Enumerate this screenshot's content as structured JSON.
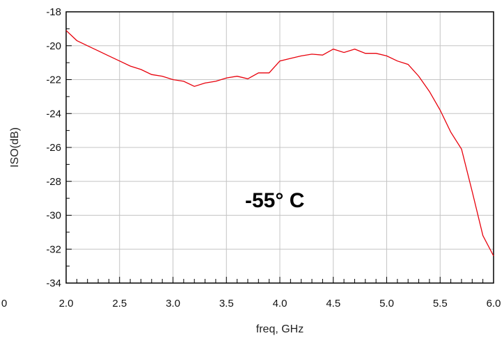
{
  "chart_data": {
    "type": "line",
    "title": "",
    "xlabel": "freq, GHz",
    "ylabel": "ISO(dB)",
    "xlim": [
      2.0,
      6.0
    ],
    "ylim": [
      -34,
      -18
    ],
    "x_ticks": [
      "2.0",
      "2.5",
      "3.0",
      "3.5",
      "4.0",
      "4.5",
      "5.0",
      "5.5",
      "6.0"
    ],
    "y_ticks": [
      "-18",
      "-20",
      "-22",
      "-24",
      "-26",
      "-28",
      "-30",
      "-32",
      "-34"
    ],
    "left_edge_tick_label": "0",
    "grid": true,
    "annotation": "-55° C",
    "series": [
      {
        "color": "#e8000b",
        "x": [
          2.0,
          2.1,
          2.2,
          2.3,
          2.4,
          2.5,
          2.6,
          2.7,
          2.8,
          2.9,
          3.0,
          3.1,
          3.2,
          3.3,
          3.4,
          3.5,
          3.6,
          3.7,
          3.8,
          3.9,
          4.0,
          4.1,
          4.2,
          4.3,
          4.4,
          4.5,
          4.6,
          4.7,
          4.8,
          4.9,
          5.0,
          5.1,
          5.2,
          5.3,
          5.4,
          5.5,
          5.6,
          5.7,
          5.8,
          5.9,
          6.0
        ],
        "y": [
          -19.1,
          -19.7,
          -20.0,
          -20.3,
          -20.6,
          -20.9,
          -21.2,
          -21.4,
          -21.7,
          -21.8,
          -22.0,
          -22.1,
          -22.4,
          -22.2,
          -22.1,
          -21.9,
          -21.8,
          -21.95,
          -21.6,
          -21.6,
          -20.9,
          -20.75,
          -20.6,
          -20.5,
          -20.55,
          -20.2,
          -20.4,
          -20.2,
          -20.45,
          -20.45,
          -20.6,
          -20.9,
          -21.1,
          -21.8,
          -22.7,
          -23.8,
          -25.1,
          -26.1,
          -28.6,
          -31.2,
          -32.4
        ]
      }
    ]
  }
}
